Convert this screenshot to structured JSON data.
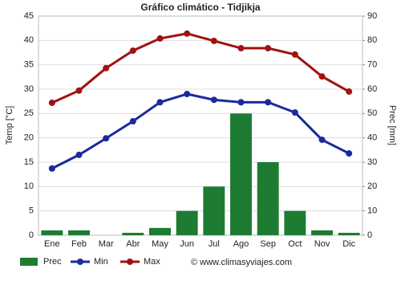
{
  "chart_data": {
    "type": "bar",
    "title": "Gráfico climático - Tidjikja",
    "categories": [
      "Ene",
      "Feb",
      "Mar",
      "Abr",
      "May",
      "Jun",
      "Jul",
      "Ago",
      "Sep",
      "Oct",
      "Nov",
      "Dic"
    ],
    "series": [
      {
        "name": "Prec",
        "type": "bar",
        "axis": "y2",
        "color": "#1e7b32",
        "values": [
          2,
          2,
          0,
          1,
          3,
          10,
          20,
          50,
          30,
          10,
          2,
          1
        ]
      },
      {
        "name": "Min",
        "type": "line",
        "color": "#1b2a9c",
        "values": [
          13.7,
          16.5,
          19.9,
          23.4,
          27.3,
          29.0,
          27.8,
          27.3,
          27.3,
          25.2,
          19.6,
          16.8
        ]
      },
      {
        "name": "Max",
        "type": "line",
        "color": "#a01212",
        "values": [
          27.2,
          29.7,
          34.3,
          37.9,
          40.4,
          41.4,
          39.9,
          38.4,
          38.4,
          37.1,
          32.6,
          29.5
        ]
      }
    ],
    "ylabel": "Temp [°C]",
    "y2label": "Prec [mm]",
    "ylim": [
      0,
      45
    ],
    "yticks": [
      0,
      5,
      10,
      15,
      20,
      25,
      30,
      35,
      40,
      45
    ],
    "y2lim": [
      0,
      90
    ],
    "y2ticks": [
      0,
      10,
      20,
      30,
      40,
      50,
      60,
      70,
      80,
      90
    ],
    "grid": true,
    "legend": "bottom",
    "credit": "© www.climasyviajes.com"
  }
}
